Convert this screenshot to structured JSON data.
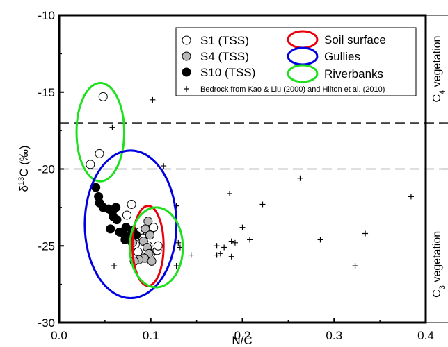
{
  "chart_data": {
    "type": "scatter",
    "xlabel": "N/C",
    "ylabel_main": "δ",
    "ylabel_sup": "13",
    "ylabel_rest": "C (‰)",
    "xlim": [
      0.0,
      0.4
    ],
    "ylim": [
      -30,
      -10
    ],
    "xticks": [
      0.0,
      0.1,
      0.2,
      0.3,
      0.4
    ],
    "xtick_labels": [
      "0.0",
      "0.1",
      "0.2",
      "0.3",
      "0.4"
    ],
    "yticks": [
      -30,
      -25,
      -20,
      -15,
      -10
    ],
    "ytick_labels": [
      "-30",
      "-25",
      "-20",
      "-15",
      "-10"
    ],
    "reference_lines": [
      -17.0,
      -20.0
    ],
    "vegetation_bands": [
      {
        "label_main": "C",
        "label_sub": "4",
        "label_rest": " vegetation",
        "y_range": [
          -20.0,
          -10.0
        ],
        "boundary_y": -17.0
      },
      {
        "label_main": "C",
        "label_sub": "3",
        "label_rest": " vegetation",
        "y_range": [
          -30.0,
          -20.0
        ],
        "boundary_y": -26.0
      }
    ],
    "legend": {
      "series_entries": [
        {
          "label": "S1 (TSS)",
          "marker": "open-circle"
        },
        {
          "label": "S4 (TSS)",
          "marker": "gray-circle"
        },
        {
          "label": "S10 (TSS)",
          "marker": "filled-circle"
        }
      ],
      "ellipse_entries": [
        {
          "label": "Soil surface",
          "color": "#e8000b"
        },
        {
          "label": "Gullies",
          "color": "#0000e0"
        },
        {
          "label": "Riverbanks",
          "color": "#1ee01e"
        }
      ],
      "bedrock_entry": {
        "label": "Bedrock from Kao & Liu (2000) and Hilton et al. (2010)",
        "marker": "plus"
      }
    },
    "series": [
      {
        "name": "S1 (TSS)",
        "marker": "open-circle",
        "fill": "#ffffff",
        "points": [
          [
            0.048,
            -15.3
          ],
          [
            0.034,
            -19.7
          ],
          [
            0.044,
            -19.0
          ],
          [
            0.074,
            -23.0
          ],
          [
            0.079,
            -22.3
          ],
          [
            0.088,
            -24.1
          ],
          [
            0.083,
            -24.9
          ],
          [
            0.09,
            -25.7
          ],
          [
            0.094,
            -25.8
          ],
          [
            0.1,
            -25.5
          ],
          [
            0.107,
            -25.3
          ],
          [
            0.108,
            -25.0
          ],
          [
            0.103,
            -23.8
          ],
          [
            0.097,
            -25.0
          ],
          [
            0.091,
            -24.5
          ],
          [
            0.086,
            -25.4
          ]
        ]
      },
      {
        "name": "S4 (TSS)",
        "marker": "gray-circle",
        "fill": "#b8b8b8",
        "points": [
          [
            0.097,
            -23.4
          ],
          [
            0.094,
            -23.9
          ],
          [
            0.099,
            -24.3
          ],
          [
            0.092,
            -24.7
          ],
          [
            0.096,
            -25.1
          ],
          [
            0.098,
            -25.5
          ],
          [
            0.093,
            -25.8
          ],
          [
            0.101,
            -26.0
          ],
          [
            0.087,
            -25.9
          ],
          [
            0.082,
            -26.0
          ],
          [
            0.08,
            -24.8
          ]
        ]
      },
      {
        "name": "S10 (TSS)",
        "marker": "filled-circle",
        "fill": "#000000",
        "points": [
          [
            0.04,
            -21.2
          ],
          [
            0.043,
            -21.8
          ],
          [
            0.044,
            -22.2
          ],
          [
            0.048,
            -22.5
          ],
          [
            0.054,
            -22.6
          ],
          [
            0.058,
            -22.8
          ],
          [
            0.059,
            -23.1
          ],
          [
            0.062,
            -22.5
          ],
          [
            0.063,
            -23.3
          ],
          [
            0.056,
            -23.9
          ],
          [
            0.066,
            -24.1
          ],
          [
            0.07,
            -24.2
          ],
          [
            0.072,
            -24.6
          ],
          [
            0.073,
            -23.8
          ],
          [
            0.077,
            -24.4
          ],
          [
            0.08,
            -24.0
          ],
          [
            0.084,
            -24.3
          ]
        ]
      },
      {
        "name": "Bedrock from Kao & Liu (2000) and Hilton et al. (2010)",
        "marker": "plus",
        "points": [
          [
            0.102,
            -15.5
          ],
          [
            0.058,
            -17.3
          ],
          [
            0.114,
            -19.8
          ],
          [
            0.263,
            -20.6
          ],
          [
            0.186,
            -21.6
          ],
          [
            0.128,
            -22.4
          ],
          [
            0.222,
            -22.3
          ],
          [
            0.384,
            -21.8
          ],
          [
            0.2,
            -23.8
          ],
          [
            0.334,
            -24.2
          ],
          [
            0.285,
            -24.6
          ],
          [
            0.208,
            -24.6
          ],
          [
            0.188,
            -24.7
          ],
          [
            0.192,
            -24.8
          ],
          [
            0.172,
            -25.0
          ],
          [
            0.18,
            -25.1
          ],
          [
            0.13,
            -24.8
          ],
          [
            0.132,
            -25.1
          ],
          [
            0.176,
            -25.5
          ],
          [
            0.172,
            -25.6
          ],
          [
            0.144,
            -25.6
          ],
          [
            0.188,
            -25.7
          ],
          [
            0.06,
            -26.3
          ],
          [
            0.128,
            -26.3
          ],
          [
            0.323,
            -26.3
          ]
        ]
      }
    ],
    "ellipses": [
      {
        "name": "Riverbanks",
        "color": "#1ee01e",
        "cx": 0.045,
        "cy": -17.6,
        "rx": 0.026,
        "ry": 3.2
      },
      {
        "name": "Gullies",
        "color": "#0000e0",
        "cx": 0.078,
        "cy": -23.6,
        "rx": 0.05,
        "ry": 4.8
      },
      {
        "name": "Soil surface",
        "color": "#e8000b",
        "cx": 0.097,
        "cy": -25.0,
        "rx": 0.017,
        "ry": 2.6
      },
      {
        "name": "Riverbanks",
        "color": "#1ee01e",
        "cx": 0.106,
        "cy": -25.1,
        "rx": 0.029,
        "ry": 2.6
      }
    ]
  }
}
